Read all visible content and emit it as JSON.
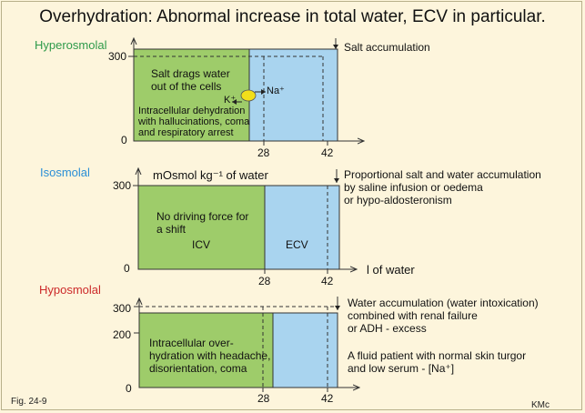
{
  "title": "Overhydration: Abnormal increase in total water, ECV in particular.",
  "colors": {
    "icv_fill": "#9ecc6a",
    "ecv_fill": "#a9d4ef",
    "hyperosmolal": "#2e9a4a",
    "isosmolal": "#2a8fd6",
    "hyposmolal": "#cc2a2a",
    "ion_dot": "#f2df1a"
  },
  "panels": {
    "hyper": {
      "label": "Hyperosmolal",
      "y_tick_top": "300",
      "y_tick_zero": "0",
      "x_tick_a": "28",
      "x_tick_b": "42",
      "icv_text": [
        "Salt drags water",
        "out of the cells"
      ],
      "ion_na": "Na⁺",
      "ion_k": "K⁺",
      "icv_text2": [
        "Intracellular dehydration",
        "with hallucinations, coma",
        "and respiratory arrest"
      ],
      "note": "Salt accumulation"
    },
    "iso": {
      "label": "Isosmolal",
      "y_axis_label": "mOsmol kg⁻¹ of water",
      "y_tick_top": "300",
      "y_tick_zero": "0",
      "x_tick_a": "28",
      "x_tick_b": "42",
      "icv_text": [
        "No driving force for",
        "a shift"
      ],
      "icv_label": "ICV",
      "ecv_label": "ECV",
      "x_axis_label": "l of water",
      "note": [
        "Proportional salt and water accumulation",
        "by saline infusion or oedema",
        "or hypo-aldosteronism"
      ]
    },
    "hypo": {
      "label": "Hyposmolal",
      "y_tick_top": "300",
      "y_tick_mid": "200",
      "y_tick_zero": "0",
      "x_tick_a": "28",
      "x_tick_b": "42",
      "icv_text": [
        "Intracellular over-",
        "hydration with headache,",
        "disorientation, coma"
      ],
      "note": [
        "Water accumulation (water intoxication)",
        "combined with renal failure",
        "or ADH - excess"
      ],
      "note2": [
        "A fluid patient with normal skin turgor",
        "and low serum - [Na⁺]"
      ]
    }
  },
  "footer": {
    "fig": "Fig. 24-9",
    "author": "KMc"
  }
}
